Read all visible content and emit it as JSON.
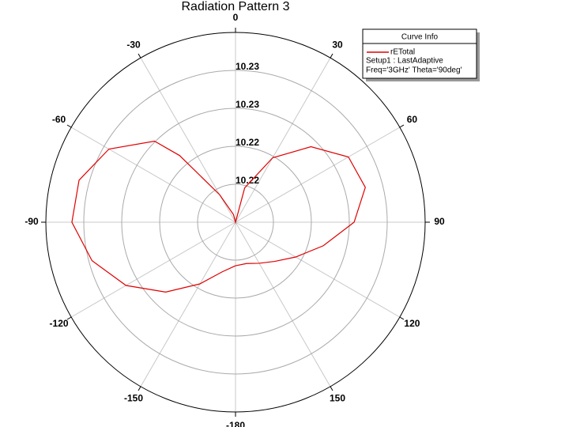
{
  "chart_data": {
    "type": "polar",
    "title": "Radiation Pattern 3",
    "x": [
      -180,
      -165,
      -150,
      -135,
      -120,
      -105,
      -90,
      -75,
      -60,
      -45,
      -40,
      -30,
      -15,
      0,
      15,
      30,
      45,
      60,
      75,
      90,
      105,
      120,
      135,
      150,
      165,
      180
    ],
    "series": [
      {
        "name": "rETotal",
        "color": "#e00000",
        "values": [
          10.22094,
          10.22156,
          10.22313,
          10.22531,
          10.2275,
          10.22925,
          10.23044,
          10.23031,
          10.22906,
          10.22656,
          10.22438,
          10.22,
          10.21813,
          10.2175,
          10.22031,
          10.22338,
          10.22594,
          10.22781,
          10.22813,
          10.22688,
          10.22469,
          10.223,
          10.22188,
          10.22125,
          10.22088,
          10.22094
        ]
      }
    ],
    "xticks": [
      -180,
      -150,
      -120,
      -90,
      -60,
      -30,
      0,
      30,
      60,
      90,
      120,
      150
    ],
    "ylim": [
      10.2175,
      10.2325
    ],
    "yticks": [
      {
        "value": 10.2205,
        "label": "10.22"
      },
      {
        "value": 10.2235,
        "label": "10.22"
      },
      {
        "value": 10.2265,
        "label": "10.23"
      },
      {
        "value": 10.2295,
        "label": "10.23"
      }
    ],
    "legend": {
      "title": "Curve Info",
      "lines": [
        "Setup1 : LastAdaptive",
        "Freq='3GHz' Theta='90deg'"
      ],
      "position": "upper right"
    },
    "grid": true
  }
}
